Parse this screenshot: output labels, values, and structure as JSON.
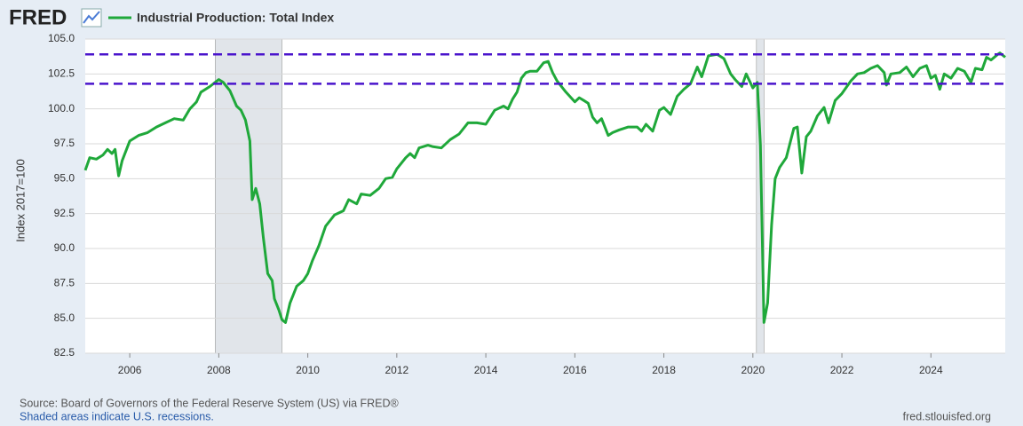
{
  "chart_data": {
    "type": "line",
    "logo": "FRED",
    "title": "Industrial Production: Total Index",
    "y_label": "Index 2017=100",
    "source": "Source: Board of Governors of the Federal Reserve System (US) via FRED®",
    "note": "Shaded areas indicate U.S. recessions.",
    "url": "fred.stlouisfed.org",
    "xlim": [
      2005,
      2025.67
    ],
    "xticks": [
      2006,
      2008,
      2010,
      2012,
      2014,
      2016,
      2018,
      2020,
      2022,
      2024
    ],
    "ylim": [
      82.5,
      105
    ],
    "yticks": [
      {
        "value": 105,
        "label": "105.0"
      },
      102.5,
      {
        "value": 100,
        "label": "100.0"
      },
      97.5,
      {
        "value": 95,
        "label": "95.0"
      },
      92.5,
      {
        "value": 90,
        "label": "90.0"
      },
      87.5,
      {
        "value": 85,
        "label": "85.0"
      },
      82.5
    ],
    "grid": true,
    "recessions": [
      [
        2007.92,
        2009.42
      ],
      [
        2020.08,
        2020.25
      ]
    ],
    "hlines": [
      {
        "value": 103.9,
        "color": "#4a14cc"
      },
      {
        "value": 101.8,
        "color": "#4a14cc"
      }
    ],
    "x": [
      2005.0,
      2005.1,
      2005.25,
      2005.4,
      2005.5,
      2005.6,
      2005.67,
      2005.75,
      2005.83,
      2006.0,
      2006.2,
      2006.4,
      2006.6,
      2006.8,
      2007.0,
      2007.2,
      2007.35,
      2007.5,
      2007.6,
      2007.8,
      2008.0,
      2008.1,
      2008.25,
      2008.4,
      2008.5,
      2008.6,
      2008.7,
      2008.75,
      2008.83,
      2008.92,
      2009.0,
      2009.1,
      2009.2,
      2009.25,
      2009.35,
      2009.42,
      2009.5,
      2009.6,
      2009.75,
      2009.9,
      2010.0,
      2010.1,
      2010.25,
      2010.4,
      2010.5,
      2010.6,
      2010.8,
      2010.92,
      2011.1,
      2011.2,
      2011.4,
      2011.6,
      2011.75,
      2011.9,
      2012.0,
      2012.2,
      2012.3,
      2012.4,
      2012.5,
      2012.7,
      2012.8,
      2013.0,
      2013.2,
      2013.4,
      2013.6,
      2013.8,
      2014.0,
      2014.2,
      2014.4,
      2014.5,
      2014.6,
      2014.7,
      2014.8,
      2014.9,
      2015.0,
      2015.15,
      2015.3,
      2015.4,
      2015.5,
      2015.6,
      2015.8,
      2016.0,
      2016.1,
      2016.2,
      2016.3,
      2016.4,
      2016.5,
      2016.6,
      2016.75,
      2016.85,
      2017.0,
      2017.2,
      2017.4,
      2017.5,
      2017.6,
      2017.75,
      2017.9,
      2018.0,
      2018.15,
      2018.3,
      2018.45,
      2018.6,
      2018.75,
      2018.85,
      2019.0,
      2019.2,
      2019.35,
      2019.5,
      2019.6,
      2019.75,
      2019.85,
      2020.0,
      2020.1,
      2020.17,
      2020.25,
      2020.33,
      2020.42,
      2020.5,
      2020.6,
      2020.75,
      2020.92,
      2021.0,
      2021.1,
      2021.2,
      2021.3,
      2021.45,
      2021.6,
      2021.7,
      2021.85,
      2022.0,
      2022.2,
      2022.35,
      2022.5,
      2022.65,
      2022.8,
      2022.95,
      2023.0,
      2023.1,
      2023.3,
      2023.45,
      2023.6,
      2023.75,
      2023.9,
      2024.0,
      2024.1,
      2024.2,
      2024.3,
      2024.45,
      2024.6,
      2024.75,
      2024.9,
      2025.0,
      2025.15,
      2025.25,
      2025.35,
      2025.5,
      2025.55,
      2025.67
    ],
    "series": [
      {
        "name": "Industrial Production: Total Index",
        "color": "#1fa83a",
        "values": [
          95.6,
          96.5,
          96.4,
          96.7,
          97.1,
          96.8,
          97.1,
          95.2,
          96.3,
          97.7,
          98.1,
          98.3,
          98.7,
          99.0,
          99.3,
          99.2,
          100.0,
          100.5,
          101.2,
          101.6,
          102.1,
          101.9,
          101.3,
          100.2,
          99.9,
          99.2,
          97.7,
          93.5,
          94.3,
          93.2,
          90.8,
          88.2,
          87.7,
          86.4,
          85.6,
          84.9,
          84.7,
          86.1,
          87.3,
          87.7,
          88.2,
          89.1,
          90.2,
          91.6,
          92.0,
          92.4,
          92.7,
          93.5,
          93.2,
          93.9,
          93.8,
          94.3,
          95.0,
          95.1,
          95.7,
          96.5,
          96.8,
          96.5,
          97.2,
          97.4,
          97.3,
          97.2,
          97.8,
          98.2,
          99.0,
          99.0,
          98.9,
          99.9,
          100.2,
          100.0,
          100.7,
          101.2,
          102.2,
          102.6,
          102.7,
          102.7,
          103.3,
          103.4,
          102.6,
          102.0,
          101.2,
          100.5,
          100.8,
          100.6,
          100.4,
          99.4,
          99.0,
          99.3,
          98.1,
          98.3,
          98.5,
          98.7,
          98.7,
          98.4,
          98.9,
          98.4,
          99.9,
          100.1,
          99.6,
          100.9,
          101.4,
          101.8,
          103.0,
          102.3,
          103.8,
          103.9,
          103.6,
          102.5,
          102.1,
          101.6,
          102.5,
          101.5,
          101.9,
          97.4,
          84.7,
          86.1,
          91.7,
          95.0,
          95.8,
          96.5,
          98.6,
          98.7,
          95.4,
          98.0,
          98.4,
          99.5,
          100.1,
          99.0,
          100.6,
          101.1,
          102.0,
          102.5,
          102.6,
          102.9,
          103.1,
          102.6,
          101.7,
          102.5,
          102.6,
          103.0,
          102.3,
          102.9,
          103.1,
          102.2,
          102.4,
          101.4,
          102.5,
          102.2,
          102.9,
          102.7,
          101.9,
          102.9,
          102.8,
          103.7,
          103.5,
          103.9,
          104.0,
          103.7
        ]
      }
    ]
  }
}
